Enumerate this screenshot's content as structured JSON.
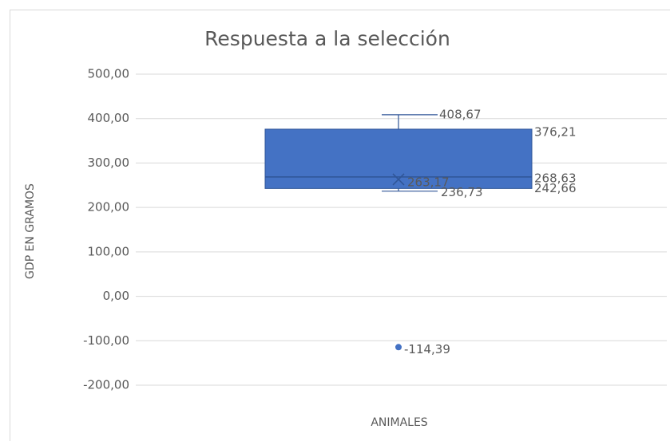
{
  "chart_data": {
    "type": "box",
    "title": "Respuesta a la selección",
    "y_label": "GDP EN GRAMOS",
    "x_label": "ANIMALES",
    "color": "#4472c4",
    "ylim": [
      -200,
      500
    ],
    "yticks": [
      {
        "value": -200,
        "label": "-200,00"
      },
      {
        "value": -100,
        "label": "-100,00"
      },
      {
        "value": 0,
        "label": "0,00"
      },
      {
        "value": 100,
        "label": "100,00"
      },
      {
        "value": 200,
        "label": "200,00"
      },
      {
        "value": 300,
        "label": "300,00"
      },
      {
        "value": 400,
        "label": "400,00"
      },
      {
        "value": 500,
        "label": "500,00"
      }
    ],
    "grid": true,
    "box": {
      "whisker_low": 236.73,
      "q1": 242.66,
      "median": 268.63,
      "q3": 376.21,
      "whisker_high": 408.67,
      "mean": 263.17,
      "outliers": [
        -114.39
      ]
    },
    "value_labels": {
      "whisker_low": "236,73",
      "q1": "242,66",
      "median": "268,63",
      "q3": "376,21",
      "whisker_high": "408,67",
      "mean": "263,17",
      "outliers": [
        "-114,39"
      ]
    }
  }
}
